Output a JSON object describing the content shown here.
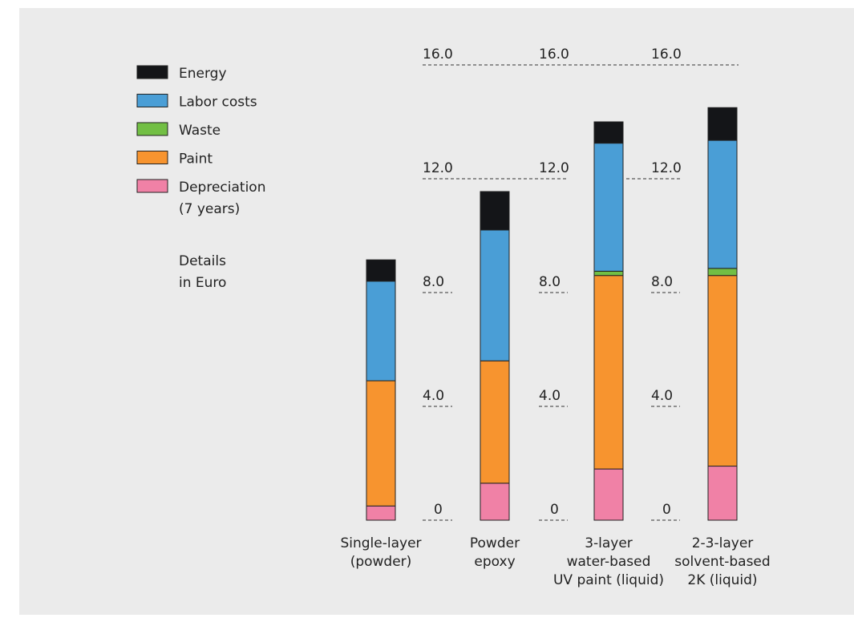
{
  "colors": {
    "Energy": "#141518",
    "Labor costs": "#4a9ed6",
    "Waste": "#72bf44",
    "Paint": "#f7942f",
    "Depreciation": "#f081a6"
  },
  "legend": [
    {
      "key": "Energy",
      "lines": [
        "Energy"
      ]
    },
    {
      "key": "Labor costs",
      "lines": [
        "Labor costs"
      ]
    },
    {
      "key": "Waste",
      "lines": [
        "Waste"
      ]
    },
    {
      "key": "Paint",
      "lines": [
        "Paint"
      ]
    },
    {
      "key": "Depreciation",
      "lines": [
        "Depreciation",
        "(7 years)"
      ]
    }
  ],
  "note": {
    "lines": [
      "Details",
      "in Euro"
    ]
  },
  "chart_data": {
    "type": "bar",
    "stacked": true,
    "unit": "Euro",
    "ylim": [
      0,
      16
    ],
    "ticks": [
      "0",
      "4.0",
      "8.0",
      "12.0",
      "16.0"
    ],
    "tick_values": [
      0,
      4,
      8,
      12,
      16
    ],
    "grid": "dashed tick lines between bars",
    "legend_position": "top-left",
    "categories": [
      {
        "lines": [
          "Single-layer",
          "(powder)"
        ]
      },
      {
        "lines": [
          "Powder",
          "epoxy"
        ]
      },
      {
        "lines": [
          "3-layer",
          "water-based",
          "UV paint (liquid)"
        ]
      },
      {
        "lines": [
          "2-3-layer",
          "solvent-based",
          "2K (liquid)"
        ]
      }
    ],
    "series": [
      {
        "name": "Depreciation",
        "values": [
          0.5,
          1.3,
          1.8,
          1.9
        ]
      },
      {
        "name": "Paint",
        "values": [
          4.4,
          4.3,
          6.8,
          6.7
        ]
      },
      {
        "name": "Waste",
        "values": [
          0.0,
          0.0,
          0.15,
          0.25
        ]
      },
      {
        "name": "Labor costs",
        "values": [
          3.5,
          4.6,
          4.5,
          4.5
        ]
      },
      {
        "name": "Energy",
        "values": [
          0.75,
          1.35,
          0.75,
          1.15
        ]
      }
    ]
  }
}
